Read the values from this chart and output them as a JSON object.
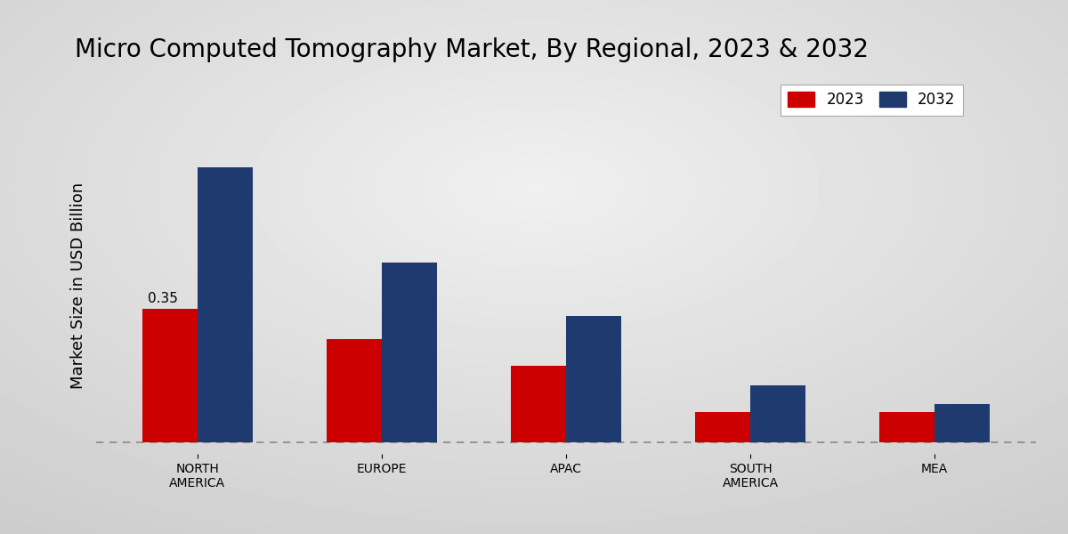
{
  "title": "Micro Computed Tomography Market, By Regional, 2023 & 2032",
  "ylabel": "Market Size in USD Billion",
  "categories": [
    "NORTH\nAMERICA",
    "EUROPE",
    "APAC",
    "SOUTH\nAMERICA",
    "MEA"
  ],
  "values_2023": [
    0.35,
    0.27,
    0.2,
    0.08,
    0.08
  ],
  "values_2032": [
    0.72,
    0.47,
    0.33,
    0.15,
    0.1
  ],
  "color_2023": "#cc0000",
  "color_2032": "#1e3a6e",
  "bar_annotation": "0.35",
  "bar_annotation_idx": 0,
  "title_fontsize": 20,
  "axis_label_fontsize": 13,
  "tick_fontsize": 10,
  "legend_fontsize": 12,
  "ylim_max": 0.85,
  "bar_width": 0.3,
  "xlim_left": -0.55,
  "xlim_right": 4.55
}
